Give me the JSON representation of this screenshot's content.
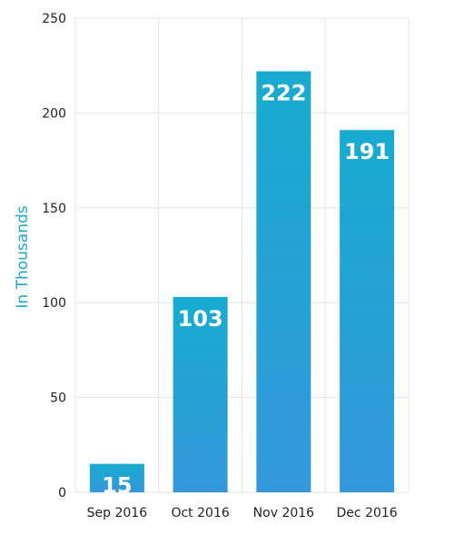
{
  "chart_data": {
    "type": "bar",
    "categories": [
      "Sep 2016",
      "Oct 2016",
      "Nov 2016",
      "Dec 2016"
    ],
    "values": [
      15,
      103,
      222,
      191
    ],
    "data_labels": [
      "15",
      "103",
      "222",
      "191"
    ],
    "xlabel": "",
    "ylabel": "In Thousands",
    "ylim": [
      0,
      250
    ],
    "y_ticks": [
      0,
      50,
      100,
      150,
      200,
      250
    ],
    "y_tick_labels": [
      "0",
      "50",
      "100",
      "150",
      "200",
      "250"
    ],
    "grid": true,
    "legend": "none",
    "colors": {
      "bar_top": "#17abcf",
      "bar_bottom": "#3498db",
      "ylabel": "#1ea7d1",
      "grid": "#e6e6e6"
    }
  }
}
